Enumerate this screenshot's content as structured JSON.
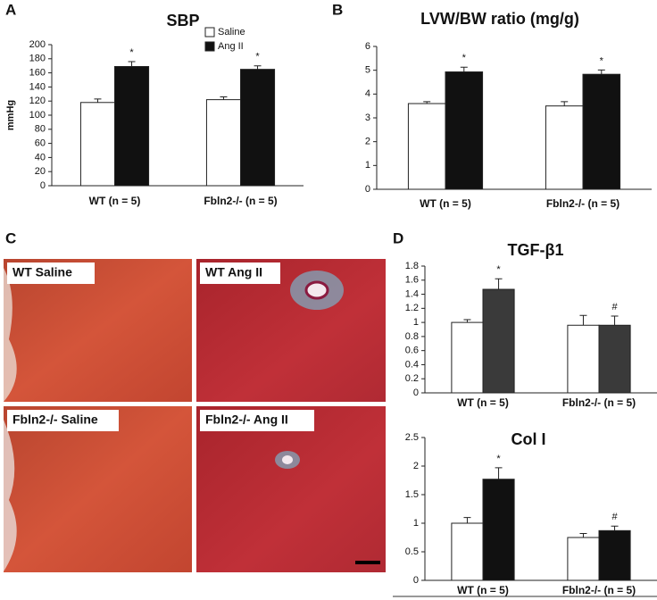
{
  "panel_labels": [
    "A",
    "B",
    "C",
    "D"
  ],
  "histology": {
    "images": [
      "WT Saline",
      "WT Ang II",
      "Fbln2-/- Saline",
      "Fbln2-/- Ang II"
    ]
  },
  "chart_data": [
    {
      "type": "bar",
      "title": "SBP",
      "y_label": "mmHg",
      "categories": [
        "WT (n = 5)",
        "Fbln2-/- (n = 5)"
      ],
      "series": [
        {
          "name": "Saline",
          "color": "#ffffff",
          "values": [
            118,
            122
          ],
          "errors": [
            5,
            4
          ],
          "markers": [
            null,
            null
          ]
        },
        {
          "name": "Ang II",
          "color": "#111111",
          "values": [
            169,
            165
          ],
          "errors": [
            7,
            5
          ],
          "markers": [
            "*",
            "*"
          ]
        }
      ],
      "ylim": [
        0,
        200
      ],
      "yticks": [
        0,
        20,
        40,
        60,
        80,
        100,
        120,
        140,
        160,
        180,
        200
      ],
      "legend": "top-right"
    },
    {
      "type": "bar",
      "title": "LVW/BW ratio (mg/g)",
      "categories": [
        "WT (n = 5)",
        "Fbln2-/- (n = 5)"
      ],
      "series": [
        {
          "color": "#ffffff",
          "values": [
            3.6,
            3.5
          ],
          "errors": [
            0.08,
            0.18
          ],
          "markers": [
            null,
            null
          ]
        },
        {
          "color": "#111111",
          "values": [
            4.93,
            4.83
          ],
          "errors": [
            0.2,
            0.18
          ],
          "markers": [
            "*",
            "*"
          ]
        }
      ],
      "ylim": [
        0,
        6
      ],
      "yticks": [
        0,
        1,
        2,
        3,
        4,
        5,
        6
      ]
    },
    {
      "type": "bar",
      "title": "TGF-β1",
      "categories": [
        "WT (n = 5)",
        "Fbln2-/- (n = 5)"
      ],
      "series": [
        {
          "color": "#ffffff",
          "values": [
            1.0,
            0.96
          ],
          "errors": [
            0.04,
            0.14
          ],
          "markers": [
            null,
            null
          ]
        },
        {
          "color": "#3a3a3a",
          "values": [
            1.47,
            0.96
          ],
          "errors": [
            0.15,
            0.13
          ],
          "markers": [
            "*",
            "#"
          ]
        }
      ],
      "ylim": [
        0,
        1.8
      ],
      "yticks": [
        0,
        0.2,
        0.4,
        0.6,
        0.8,
        1,
        1.2,
        1.4,
        1.6,
        1.8
      ]
    },
    {
      "type": "bar",
      "title": "Col I",
      "categories": [
        "WT (n = 5)",
        "Fbln2-/- (n = 5)"
      ],
      "series": [
        {
          "color": "#ffffff",
          "values": [
            1.0,
            0.75
          ],
          "errors": [
            0.1,
            0.07
          ],
          "markers": [
            null,
            null
          ]
        },
        {
          "color": "#111111",
          "values": [
            1.77,
            0.87
          ],
          "errors": [
            0.2,
            0.08
          ],
          "markers": [
            "*",
            "#"
          ]
        }
      ],
      "ylim": [
        0,
        2.5
      ],
      "yticks": [
        0,
        0.5,
        1,
        1.5,
        2,
        2.5
      ]
    }
  ]
}
